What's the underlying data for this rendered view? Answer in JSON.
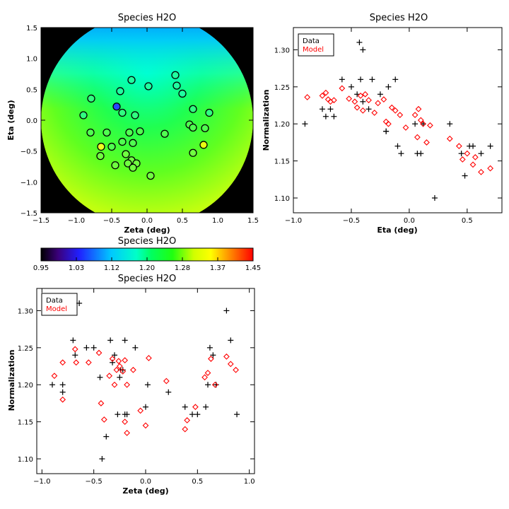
{
  "chart_data": [
    {
      "type": "heatmap",
      "title": "Species H2O",
      "xlabel": "Zeta (deg)",
      "ylabel": "Eta (deg)",
      "xlim": [
        -1.5,
        1.5
      ],
      "ylim": [
        -1.5,
        1.5
      ],
      "xticks": [
        "−1.5",
        "−1.0",
        "−0.5",
        "0.0",
        "0.5",
        "1.0",
        "1.5"
      ],
      "yticks": [
        "−1.5",
        "−1.0",
        "−0.5",
        "0.0",
        "0.5",
        "1.0",
        "1.5"
      ],
      "field_region": "disk of radius 1.5 deg, black outside",
      "points_zeta_eta": [
        [
          -0.43,
          0.22
        ],
        [
          -0.38,
          0.47
        ],
        [
          -0.22,
          0.65
        ],
        [
          0.02,
          0.55
        ],
        [
          0.4,
          0.73
        ],
        [
          0.42,
          0.56
        ],
        [
          0.5,
          0.43
        ],
        [
          -0.79,
          0.35
        ],
        [
          -0.9,
          0.08
        ],
        [
          -0.35,
          0.12
        ],
        [
          -0.17,
          0.08
        ],
        [
          0.65,
          0.18
        ],
        [
          0.88,
          0.12
        ],
        [
          -0.8,
          -0.2
        ],
        [
          -0.57,
          -0.2
        ],
        [
          -0.25,
          -0.2
        ],
        [
          -0.1,
          -0.18
        ],
        [
          0.25,
          -0.22
        ],
        [
          0.6,
          -0.07
        ],
        [
          0.65,
          -0.12
        ],
        [
          0.82,
          -0.13
        ],
        [
          -0.65,
          -0.43
        ],
        [
          -0.5,
          -0.43
        ],
        [
          -0.35,
          -0.35
        ],
        [
          -0.2,
          -0.37
        ],
        [
          0.8,
          -0.4
        ],
        [
          -0.66,
          -0.58
        ],
        [
          -0.3,
          -0.55
        ],
        [
          0.65,
          -0.53
        ],
        [
          -0.22,
          -0.65
        ],
        [
          -0.27,
          -0.7
        ],
        [
          -0.45,
          -0.73
        ],
        [
          -0.15,
          -0.7
        ],
        [
          -0.2,
          -0.77
        ],
        [
          0.05,
          -0.9
        ]
      ],
      "colorbar": {
        "title": "Species H2O",
        "min": 0.95,
        "max": 1.45,
        "tick_labels": [
          "0.95",
          "1.03",
          "1.12",
          "1.20",
          "1.28",
          "1.37",
          "1.45"
        ]
      }
    },
    {
      "type": "scatter",
      "title": "Species H2O",
      "xlabel": "Eta (deg)",
      "ylabel": "Normalization",
      "xlim": [
        -1.0,
        0.8
      ],
      "ylim": [
        1.08,
        1.33
      ],
      "xticks": [
        "−1.0",
        "−0.5",
        "0.0",
        "0.5"
      ],
      "yticks": [
        "1.10",
        "1.15",
        "1.20",
        "1.25",
        "1.30"
      ],
      "legend": {
        "position": "top-left",
        "entries": [
          {
            "label": "Data",
            "color": "#000000"
          },
          {
            "label": "Model",
            "color": "#ff0000"
          }
        ]
      },
      "series": [
        {
          "name": "Data",
          "marker": "plus",
          "color": "#000000",
          "points": [
            [
              -0.9,
              1.2
            ],
            [
              -0.75,
              1.22
            ],
            [
              -0.72,
              1.21
            ],
            [
              -0.68,
              1.22
            ],
            [
              -0.65,
              1.21
            ],
            [
              -0.58,
              1.26
            ],
            [
              -0.5,
              1.25
            ],
            [
              -0.45,
              1.24
            ],
            [
              -0.43,
              1.31
            ],
            [
              -0.4,
              1.3
            ],
            [
              -0.42,
              1.26
            ],
            [
              -0.4,
              1.23
            ],
            [
              -0.35,
              1.22
            ],
            [
              -0.32,
              1.26
            ],
            [
              -0.25,
              1.24
            ],
            [
              -0.2,
              1.19
            ],
            [
              -0.2,
              1.19
            ],
            [
              -0.18,
              1.25
            ],
            [
              -0.12,
              1.26
            ],
            [
              -0.1,
              1.17
            ],
            [
              -0.07,
              1.16
            ],
            [
              0.05,
              1.2
            ],
            [
              0.07,
              1.16
            ],
            [
              0.1,
              1.16
            ],
            [
              0.12,
              1.2
            ],
            [
              0.22,
              1.1
            ],
            [
              0.35,
              1.2
            ],
            [
              0.45,
              1.16
            ],
            [
              0.48,
              1.13
            ],
            [
              0.52,
              1.17
            ],
            [
              0.55,
              1.17
            ],
            [
              0.62,
              1.16
            ],
            [
              0.7,
              1.17
            ]
          ]
        },
        {
          "name": "Model",
          "marker": "diamond",
          "color": "#ff0000",
          "points": [
            [
              -0.88,
              1.236
            ],
            [
              -0.75,
              1.238
            ],
            [
              -0.72,
              1.242
            ],
            [
              -0.7,
              1.233
            ],
            [
              -0.68,
              1.23
            ],
            [
              -0.65,
              1.232
            ],
            [
              -0.58,
              1.248
            ],
            [
              -0.52,
              1.234
            ],
            [
              -0.47,
              1.23
            ],
            [
              -0.45,
              1.222
            ],
            [
              -0.42,
              1.238
            ],
            [
              -0.4,
              1.218
            ],
            [
              -0.38,
              1.24
            ],
            [
              -0.35,
              1.232
            ],
            [
              -0.3,
              1.215
            ],
            [
              -0.27,
              1.228
            ],
            [
              -0.22,
              1.233
            ],
            [
              -0.2,
              1.203
            ],
            [
              -0.18,
              1.2
            ],
            [
              -0.15,
              1.222
            ],
            [
              -0.12,
              1.218
            ],
            [
              -0.08,
              1.212
            ],
            [
              -0.03,
              1.195
            ],
            [
              0.05,
              1.212
            ],
            [
              0.07,
              1.182
            ],
            [
              0.08,
              1.22
            ],
            [
              0.1,
              1.205
            ],
            [
              0.12,
              1.2
            ],
            [
              0.15,
              1.175
            ],
            [
              0.18,
              1.198
            ],
            [
              0.35,
              1.18
            ],
            [
              0.43,
              1.17
            ],
            [
              0.46,
              1.152
            ],
            [
              0.5,
              1.16
            ],
            [
              0.55,
              1.145
            ],
            [
              0.57,
              1.155
            ],
            [
              0.62,
              1.135
            ],
            [
              0.7,
              1.14
            ]
          ]
        }
      ]
    },
    {
      "type": "scatter",
      "title": "Species H2O",
      "xlabel": "Zeta (deg)",
      "ylabel": "Normalization",
      "xlim": [
        -1.05,
        1.05
      ],
      "ylim": [
        1.08,
        1.33
      ],
      "xticks": [
        "−1.0",
        "−0.5",
        "0.0",
        "0.5",
        "1.0"
      ],
      "yticks": [
        "1.10",
        "1.15",
        "1.20",
        "1.25",
        "1.30"
      ],
      "legend": {
        "position": "top-left",
        "entries": [
          {
            "label": "Data",
            "color": "#000000"
          },
          {
            "label": "Model",
            "color": "#ff0000"
          }
        ]
      },
      "series": [
        {
          "name": "Data",
          "marker": "plus",
          "color": "#000000",
          "points": [
            [
              -0.9,
              1.2
            ],
            [
              -0.8,
              1.2
            ],
            [
              -0.8,
              1.19
            ],
            [
              -0.7,
              1.26
            ],
            [
              -0.68,
              1.24
            ],
            [
              -0.64,
              1.31
            ],
            [
              -0.57,
              1.25
            ],
            [
              -0.5,
              1.25
            ],
            [
              -0.44,
              1.21
            ],
            [
              -0.42,
              1.1
            ],
            [
              -0.38,
              1.13
            ],
            [
              -0.34,
              1.26
            ],
            [
              -0.32,
              1.23
            ],
            [
              -0.3,
              1.24
            ],
            [
              -0.27,
              1.16
            ],
            [
              -0.25,
              1.21
            ],
            [
              -0.24,
              1.22
            ],
            [
              -0.22,
              1.22
            ],
            [
              -0.2,
              1.26
            ],
            [
              -0.18,
              1.16
            ],
            [
              -0.2,
              1.16
            ],
            [
              -0.1,
              1.25
            ],
            [
              0.0,
              1.17
            ],
            [
              0.02,
              1.2
            ],
            [
              0.22,
              1.19
            ],
            [
              0.38,
              1.17
            ],
            [
              0.45,
              1.16
            ],
            [
              0.5,
              1.16
            ],
            [
              0.58,
              1.17
            ],
            [
              0.6,
              1.2
            ],
            [
              0.62,
              1.25
            ],
            [
              0.65,
              1.24
            ],
            [
              0.68,
              1.2
            ],
            [
              0.78,
              1.3
            ],
            [
              0.82,
              1.26
            ],
            [
              0.88,
              1.16
            ]
          ]
        },
        {
          "name": "Model",
          "marker": "diamond",
          "color": "#ff0000",
          "points": [
            [
              -0.88,
              1.212
            ],
            [
              -0.8,
              1.23
            ],
            [
              -0.8,
              1.18
            ],
            [
              -0.68,
              1.248
            ],
            [
              -0.67,
              1.23
            ],
            [
              -0.55,
              1.23
            ],
            [
              -0.45,
              1.243
            ],
            [
              -0.43,
              1.175
            ],
            [
              -0.4,
              1.153
            ],
            [
              -0.35,
              1.212
            ],
            [
              -0.32,
              1.235
            ],
            [
              -0.3,
              1.2
            ],
            [
              -0.28,
              1.22
            ],
            [
              -0.26,
              1.232
            ],
            [
              -0.25,
              1.225
            ],
            [
              -0.22,
              1.218
            ],
            [
              -0.2,
              1.233
            ],
            [
              -0.18,
              1.2
            ],
            [
              -0.2,
              1.15
            ],
            [
              -0.18,
              1.135
            ],
            [
              -0.12,
              1.22
            ],
            [
              -0.05,
              1.165
            ],
            [
              0.0,
              1.145
            ],
            [
              0.03,
              1.236
            ],
            [
              0.2,
              1.205
            ],
            [
              0.38,
              1.14
            ],
            [
              0.4,
              1.152
            ],
            [
              0.48,
              1.17
            ],
            [
              0.57,
              1.21
            ],
            [
              0.6,
              1.216
            ],
            [
              0.63,
              1.235
            ],
            [
              0.67,
              1.2
            ],
            [
              0.78,
              1.238
            ],
            [
              0.82,
              1.228
            ],
            [
              0.87,
              1.22
            ]
          ]
        }
      ]
    }
  ]
}
